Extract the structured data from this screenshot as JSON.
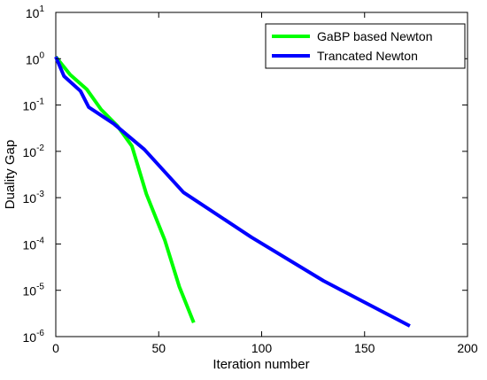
{
  "chart_data": {
    "type": "line",
    "xlabel": "Iteration number",
    "ylabel": "Duality Gap",
    "xlim": [
      0,
      200
    ],
    "ylim": [
      1e-06,
      10
    ],
    "yscale": "log",
    "grid": false,
    "legend_position": "top-right",
    "x_ticks": [
      "0",
      "50",
      "100",
      "150",
      "200"
    ],
    "y_ticks": [
      {
        "base": "10",
        "exp": "1"
      },
      {
        "base": "10",
        "exp": "0"
      },
      {
        "base": "10",
        "exp": "-1"
      },
      {
        "base": "10",
        "exp": "-2"
      },
      {
        "base": "10",
        "exp": "-3"
      },
      {
        "base": "10",
        "exp": "-4"
      },
      {
        "base": "10",
        "exp": "-5"
      },
      {
        "base": "10",
        "exp": "-6"
      }
    ],
    "series": [
      {
        "name": "GaBP based Newton",
        "color": "#00ff00",
        "x": [
          0,
          7,
          15,
          22,
          30,
          37,
          44,
          53,
          60,
          67
        ],
        "y": [
          1.1,
          0.45,
          0.22,
          0.08,
          0.035,
          0.013,
          0.0012,
          0.00012,
          1.2e-05,
          2e-06
        ]
      },
      {
        "name": "Trancated Newton",
        "color": "#0000ff",
        "x": [
          0,
          4,
          12,
          16,
          28,
          43,
          62,
          95,
          130,
          172
        ],
        "y": [
          1.1,
          0.42,
          0.2,
          0.09,
          0.04,
          0.011,
          0.0013,
          0.00014,
          1.6e-05,
          1.7e-06
        ]
      }
    ]
  }
}
